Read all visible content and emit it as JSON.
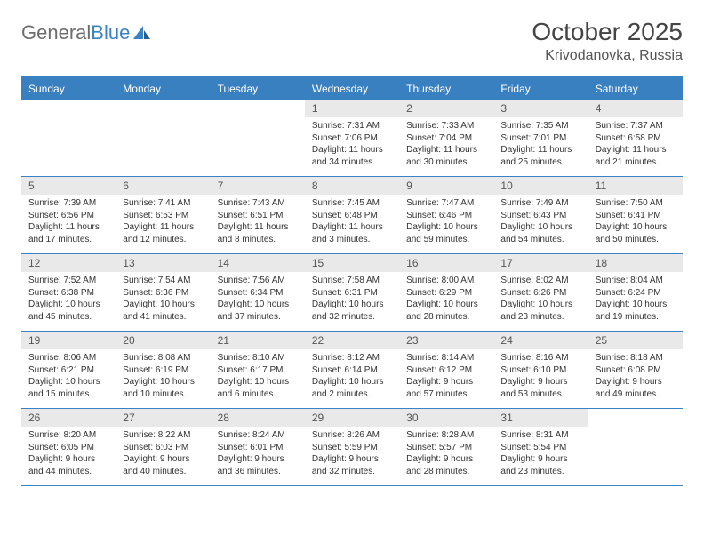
{
  "brand": {
    "name_gray": "General",
    "name_blue": "Blue"
  },
  "title": "October 2025",
  "location": "Krivodanovka, Russia",
  "colors": {
    "header_bg": "#3980c0",
    "header_text": "#ffffff",
    "date_row_bg": "#e9e9e9",
    "rule": "#3b82c4",
    "body_text": "#333333",
    "brand_gray": "#6d6d6d",
    "brand_blue": "#3b82c4"
  },
  "day_names": [
    "Sunday",
    "Monday",
    "Tuesday",
    "Wednesday",
    "Thursday",
    "Friday",
    "Saturday"
  ],
  "weeks": [
    [
      null,
      null,
      null,
      {
        "d": "1",
        "sr": "7:31 AM",
        "ss": "7:06 PM",
        "dl": "11 hours and 34 minutes."
      },
      {
        "d": "2",
        "sr": "7:33 AM",
        "ss": "7:04 PM",
        "dl": "11 hours and 30 minutes."
      },
      {
        "d": "3",
        "sr": "7:35 AM",
        "ss": "7:01 PM",
        "dl": "11 hours and 25 minutes."
      },
      {
        "d": "4",
        "sr": "7:37 AM",
        "ss": "6:58 PM",
        "dl": "11 hours and 21 minutes."
      }
    ],
    [
      {
        "d": "5",
        "sr": "7:39 AM",
        "ss": "6:56 PM",
        "dl": "11 hours and 17 minutes."
      },
      {
        "d": "6",
        "sr": "7:41 AM",
        "ss": "6:53 PM",
        "dl": "11 hours and 12 minutes."
      },
      {
        "d": "7",
        "sr": "7:43 AM",
        "ss": "6:51 PM",
        "dl": "11 hours and 8 minutes."
      },
      {
        "d": "8",
        "sr": "7:45 AM",
        "ss": "6:48 PM",
        "dl": "11 hours and 3 minutes."
      },
      {
        "d": "9",
        "sr": "7:47 AM",
        "ss": "6:46 PM",
        "dl": "10 hours and 59 minutes."
      },
      {
        "d": "10",
        "sr": "7:49 AM",
        "ss": "6:43 PM",
        "dl": "10 hours and 54 minutes."
      },
      {
        "d": "11",
        "sr": "7:50 AM",
        "ss": "6:41 PM",
        "dl": "10 hours and 50 minutes."
      }
    ],
    [
      {
        "d": "12",
        "sr": "7:52 AM",
        "ss": "6:38 PM",
        "dl": "10 hours and 45 minutes."
      },
      {
        "d": "13",
        "sr": "7:54 AM",
        "ss": "6:36 PM",
        "dl": "10 hours and 41 minutes."
      },
      {
        "d": "14",
        "sr": "7:56 AM",
        "ss": "6:34 PM",
        "dl": "10 hours and 37 minutes."
      },
      {
        "d": "15",
        "sr": "7:58 AM",
        "ss": "6:31 PM",
        "dl": "10 hours and 32 minutes."
      },
      {
        "d": "16",
        "sr": "8:00 AM",
        "ss": "6:29 PM",
        "dl": "10 hours and 28 minutes."
      },
      {
        "d": "17",
        "sr": "8:02 AM",
        "ss": "6:26 PM",
        "dl": "10 hours and 23 minutes."
      },
      {
        "d": "18",
        "sr": "8:04 AM",
        "ss": "6:24 PM",
        "dl": "10 hours and 19 minutes."
      }
    ],
    [
      {
        "d": "19",
        "sr": "8:06 AM",
        "ss": "6:21 PM",
        "dl": "10 hours and 15 minutes."
      },
      {
        "d": "20",
        "sr": "8:08 AM",
        "ss": "6:19 PM",
        "dl": "10 hours and 10 minutes."
      },
      {
        "d": "21",
        "sr": "8:10 AM",
        "ss": "6:17 PM",
        "dl": "10 hours and 6 minutes."
      },
      {
        "d": "22",
        "sr": "8:12 AM",
        "ss": "6:14 PM",
        "dl": "10 hours and 2 minutes."
      },
      {
        "d": "23",
        "sr": "8:14 AM",
        "ss": "6:12 PM",
        "dl": "9 hours and 57 minutes."
      },
      {
        "d": "24",
        "sr": "8:16 AM",
        "ss": "6:10 PM",
        "dl": "9 hours and 53 minutes."
      },
      {
        "d": "25",
        "sr": "8:18 AM",
        "ss": "6:08 PM",
        "dl": "9 hours and 49 minutes."
      }
    ],
    [
      {
        "d": "26",
        "sr": "8:20 AM",
        "ss": "6:05 PM",
        "dl": "9 hours and 44 minutes."
      },
      {
        "d": "27",
        "sr": "8:22 AM",
        "ss": "6:03 PM",
        "dl": "9 hours and 40 minutes."
      },
      {
        "d": "28",
        "sr": "8:24 AM",
        "ss": "6:01 PM",
        "dl": "9 hours and 36 minutes."
      },
      {
        "d": "29",
        "sr": "8:26 AM",
        "ss": "5:59 PM",
        "dl": "9 hours and 32 minutes."
      },
      {
        "d": "30",
        "sr": "8:28 AM",
        "ss": "5:57 PM",
        "dl": "9 hours and 28 minutes."
      },
      {
        "d": "31",
        "sr": "8:31 AM",
        "ss": "5:54 PM",
        "dl": "9 hours and 23 minutes."
      },
      null
    ]
  ],
  "labels": {
    "sunrise": "Sunrise: ",
    "sunset": "Sunset: ",
    "daylight": "Daylight: "
  }
}
